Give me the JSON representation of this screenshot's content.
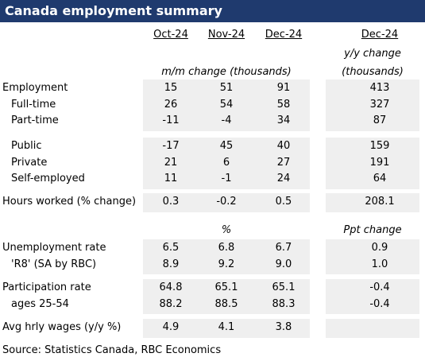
{
  "header": {
    "title": "Canada employment summary"
  },
  "table": {
    "columns": [
      "Oct-24",
      "Nov-24",
      "Dec-24",
      "Dec-24"
    ],
    "mm_note": "m/m change (thousands)",
    "yy_note": [
      "y/y change",
      "(thousands)"
    ],
    "pct_note": "%",
    "ppt_note": "Ppt change",
    "groups": [
      [
        [
          "Employment",
          "15",
          "51",
          "91",
          "413"
        ],
        [
          "Full-time",
          "26",
          "54",
          "58",
          "327"
        ],
        [
          "Part-time",
          "-11",
          "-4",
          "34",
          "87"
        ]
      ],
      [
        [
          "Public",
          "-17",
          "45",
          "40",
          "159"
        ],
        [
          "Private",
          "21",
          "6",
          "27",
          "191"
        ],
        [
          "Self-employed",
          "11",
          "-1",
          "24",
          "64"
        ]
      ],
      [
        [
          "Hours worked (% change)",
          "0.3",
          "-0.2",
          "0.5",
          "208.1"
        ]
      ],
      [
        [
          "Unemployment rate",
          "6.5",
          "6.8",
          "6.7",
          "0.9"
        ],
        [
          "'R8' (SA by RBC)",
          "8.9",
          "9.2",
          "9.0",
          "1.0"
        ]
      ],
      [
        [
          "Participation rate",
          "64.8",
          "65.1",
          "65.1",
          "-0.4"
        ],
        [
          "ages 25-54",
          "88.2",
          "88.5",
          "88.3",
          "-0.4"
        ]
      ],
      [
        [
          "Avg hrly wages (y/y %)",
          "4.9",
          "4.1",
          "3.8"
        ]
      ]
    ]
  },
  "footer": {
    "source": "Source:  Statistics Canada, RBC Economics"
  }
}
